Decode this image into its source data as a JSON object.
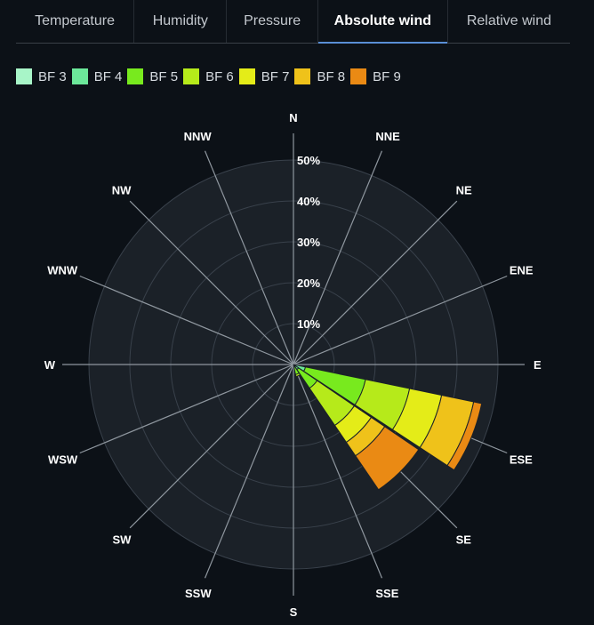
{
  "tabs": [
    {
      "label": "Temperature",
      "active": false
    },
    {
      "label": "Humidity",
      "active": false
    },
    {
      "label": "Pressure",
      "active": false
    },
    {
      "label": "Absolute wind",
      "active": true
    },
    {
      "label": "Relative wind",
      "active": false
    }
  ],
  "colors": {
    "background": "#0c1117",
    "active_tab_underline": "#5a8fd6"
  },
  "chart_data": {
    "type": "wind-rose",
    "directions": [
      "N",
      "NNE",
      "NE",
      "ENE",
      "E",
      "ESE",
      "SE",
      "SSE",
      "S",
      "SSW",
      "SW",
      "WSW",
      "W",
      "WNW",
      "NW",
      "NNW"
    ],
    "radial_ticks": [
      "10%",
      "20%",
      "30%",
      "40%",
      "50%"
    ],
    "radial_max": 50,
    "legend_position": "top-left",
    "series": [
      {
        "name": "BF 3",
        "color": "#a8f5c8",
        "values": [
          0,
          0,
          0,
          0,
          0,
          0.5,
          0.5,
          0,
          0,
          0,
          0,
          0,
          0,
          0,
          0,
          0
        ]
      },
      {
        "name": "BF 4",
        "color": "#6ce89a",
        "values": [
          0,
          0,
          0,
          0,
          0,
          2.5,
          1,
          0.5,
          0,
          0,
          0,
          0,
          0,
          0,
          0,
          0
        ]
      },
      {
        "name": "BF 5",
        "color": "#78ea1e",
        "values": [
          0,
          0,
          0,
          0,
          0,
          15,
          5.5,
          2,
          0,
          0,
          0,
          0,
          0,
          0,
          0,
          0
        ]
      },
      {
        "name": "BF 6",
        "color": "#b6ea1a",
        "values": [
          0,
          0,
          0,
          0,
          0,
          11,
          11,
          0.5,
          0,
          0,
          0,
          0,
          0,
          0,
          0,
          0
        ]
      },
      {
        "name": "BF 7",
        "color": "#e4ec18",
        "values": [
          0,
          0,
          0,
          0,
          0,
          8,
          5,
          0,
          0,
          0,
          0,
          0,
          0,
          0,
          0,
          0
        ]
      },
      {
        "name": "BF 8",
        "color": "#efc21a",
        "values": [
          0,
          0,
          0,
          0,
          0,
          8,
          4,
          0,
          0,
          0,
          0,
          0,
          0,
          0,
          0,
          0
        ]
      },
      {
        "name": "BF 9",
        "color": "#ea8a14",
        "values": [
          0,
          0,
          0,
          0,
          0,
          2,
          10,
          0,
          0,
          0,
          0,
          0,
          0,
          0,
          0,
          0
        ]
      }
    ]
  }
}
